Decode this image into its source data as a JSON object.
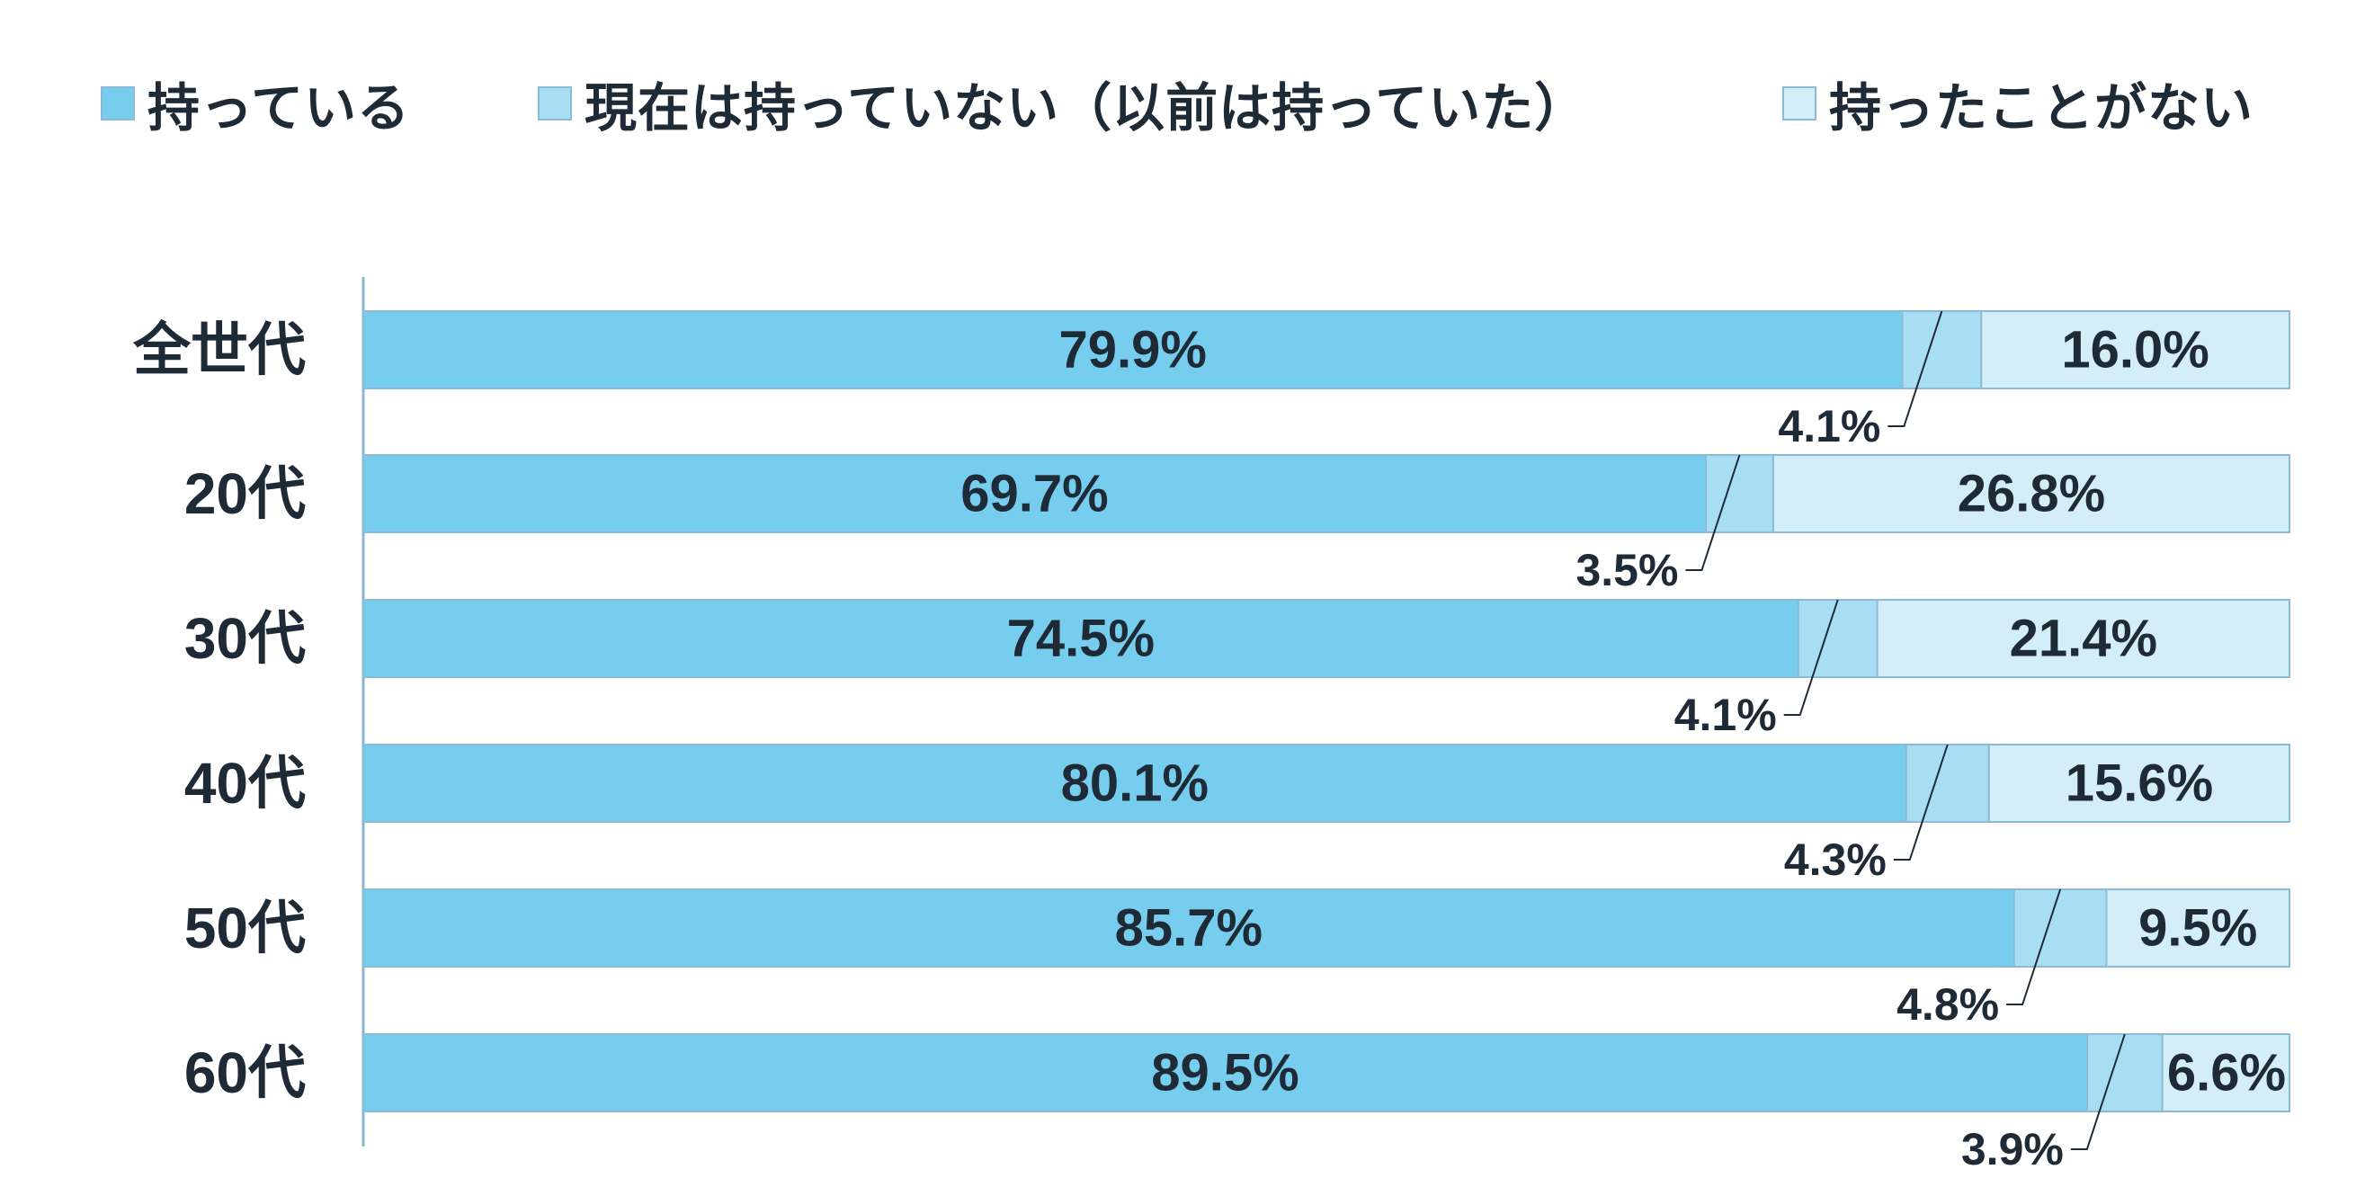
{
  "legend": [
    {
      "label": "持っている",
      "color": "#76cdee"
    },
    {
      "label": "現在は持っていない（以前は持っていた）",
      "color": "#a7def3"
    },
    {
      "label": "持ったことがない",
      "color": "#d4eef9"
    }
  ],
  "chart_data": {
    "type": "bar",
    "orientation": "horizontal",
    "stacked": true,
    "categories": [
      "全世代",
      "20代",
      "30代",
      "40代",
      "50代",
      "60代"
    ],
    "series": [
      {
        "name": "持っている",
        "values": [
          79.9,
          69.7,
          74.5,
          80.1,
          85.7,
          89.5
        ],
        "color": "#76cdee"
      },
      {
        "name": "現在は持っていない（以前は持っていた）",
        "values": [
          4.1,
          3.5,
          4.1,
          4.3,
          4.8,
          3.9
        ],
        "color": "#a7def3"
      },
      {
        "name": "持ったことがない",
        "values": [
          16.0,
          26.8,
          21.4,
          15.6,
          9.5,
          6.6
        ],
        "color": "#d4eef9"
      }
    ],
    "data_labels": [
      [
        "79.9%",
        "4.1%",
        "16.0%"
      ],
      [
        "69.7%",
        "3.5%",
        "26.8%"
      ],
      [
        "74.5%",
        "4.1%",
        "21.4%"
      ],
      [
        "80.1%",
        "4.3%",
        "15.6%"
      ],
      [
        "85.7%",
        "4.8%",
        "9.5%"
      ],
      [
        "89.5%",
        "3.9%",
        "6.6%"
      ]
    ],
    "xlim": [
      0,
      100
    ],
    "legend_position": "top",
    "grid": false,
    "middle_series_label_style": "callout-below"
  }
}
